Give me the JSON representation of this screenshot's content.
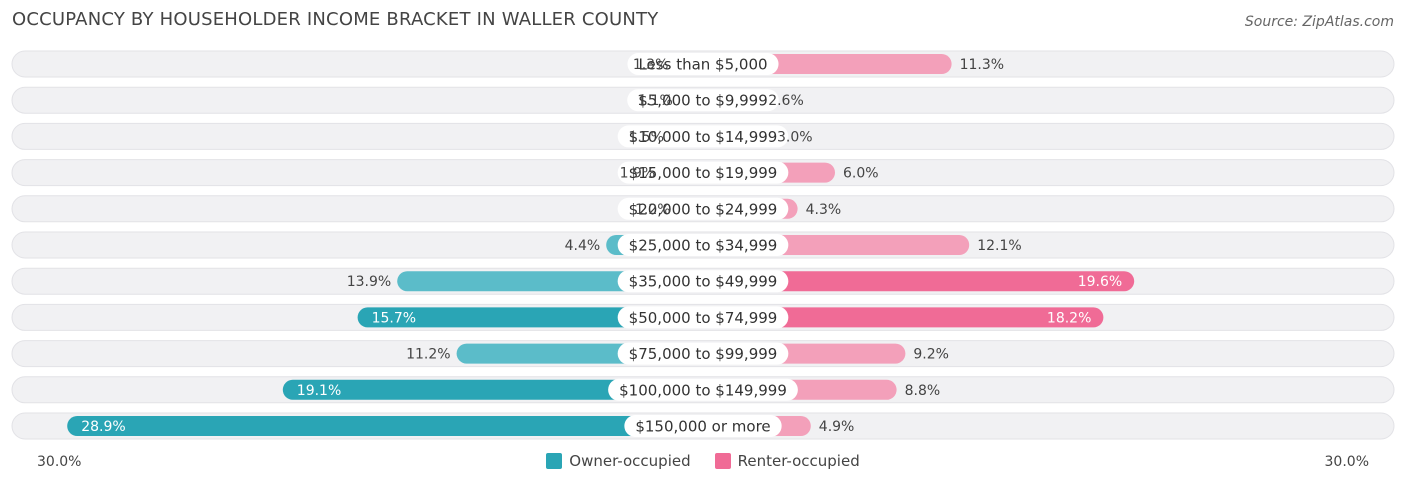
{
  "title": "OCCUPANCY BY HOUSEHOLDER INCOME BRACKET IN WALLER COUNTY",
  "source": "Source: ZipAtlas.com",
  "colors": {
    "owner": "#5bbcc9",
    "owner_strong": "#2aa5b5",
    "renter": "#f3a0ba",
    "renter_strong": "#f06b96"
  },
  "legend": {
    "owner_label": "Owner-occupied",
    "renter_label": "Renter-occupied"
  },
  "chart_data": {
    "type": "bar",
    "orientation": "horizontal-diverging",
    "xlim": [
      -30,
      30
    ],
    "axis_min_label": "30.0%",
    "axis_max_label": "30.0%",
    "categories": [
      "Less than $5,000",
      "$5,000 to $9,999",
      "$10,000 to $14,999",
      "$15,000 to $19,999",
      "$20,000 to $24,999",
      "$25,000 to $34,999",
      "$35,000 to $49,999",
      "$50,000 to $74,999",
      "$75,000 to $99,999",
      "$100,000 to $149,999",
      "$150,000 or more"
    ],
    "series": [
      {
        "name": "Owner-occupied",
        "values": [
          1.3,
          1.1,
          1.5,
          1.9,
          1.2,
          4.4,
          13.9,
          15.7,
          11.2,
          19.1,
          28.9
        ],
        "labels": [
          "1.3%",
          "1.1%",
          "1.5%",
          "1.9%",
          "1.2%",
          "4.4%",
          "13.9%",
          "15.7%",
          "11.2%",
          "19.1%",
          "28.9%"
        ]
      },
      {
        "name": "Renter-occupied",
        "values": [
          11.3,
          2.6,
          3.0,
          6.0,
          4.3,
          12.1,
          19.6,
          18.2,
          9.2,
          8.8,
          4.9
        ],
        "labels": [
          "11.3%",
          "2.6%",
          "3.0%",
          "6.0%",
          "4.3%",
          "12.1%",
          "19.6%",
          "18.2%",
          "9.2%",
          "8.8%",
          "4.9%"
        ]
      }
    ]
  }
}
